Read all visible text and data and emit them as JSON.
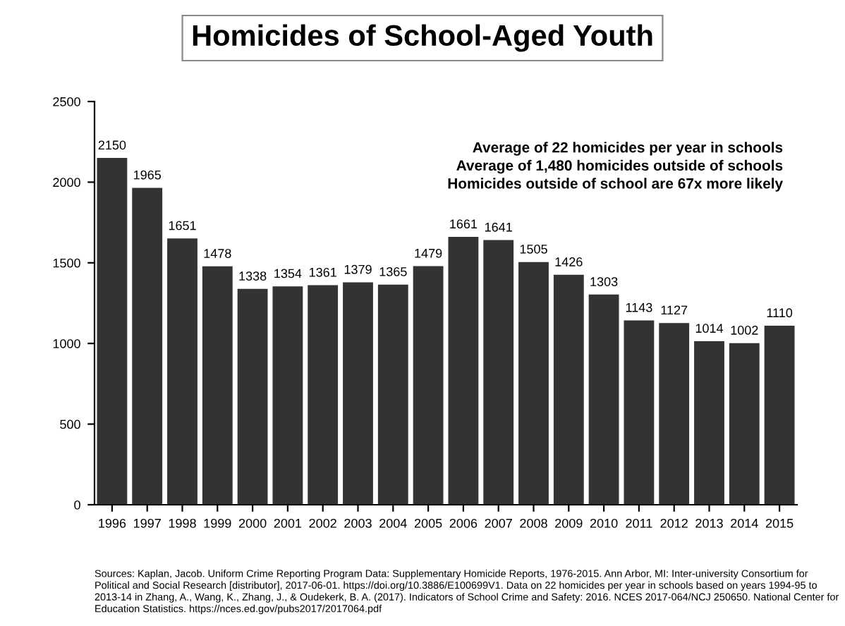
{
  "chart_data": {
    "type": "bar",
    "title": "Homicides of School-Aged Youth",
    "categories": [
      "1996",
      "1997",
      "1998",
      "1999",
      "2000",
      "2001",
      "2002",
      "2003",
      "2004",
      "2005",
      "2006",
      "2007",
      "2008",
      "2009",
      "2010",
      "2011",
      "2012",
      "2013",
      "2014",
      "2015"
    ],
    "values": [
      2150,
      1965,
      1651,
      1478,
      1338,
      1354,
      1361,
      1379,
      1365,
      1479,
      1661,
      1641,
      1505,
      1426,
      1303,
      1143,
      1127,
      1014,
      1002,
      1110
    ],
    "color": "#333333",
    "ylim": [
      0,
      2500
    ],
    "yticks": [
      0,
      500,
      1000,
      1500,
      2000,
      2500
    ],
    "grid": false,
    "data_labels": true,
    "annotations": [
      "Average of 22 homicides per year in schools\nAverage of 1,480 homicides outside of schools\nHomicides outside of school are 67x more likely",
      "Sources: Kaplan, Jacob. Uniform Crime Reporting Program Data: Supplementary Homicide Reports, 1976-2015. Ann Arbor, MI: Inter-university Consortium for Political and Social Research [distributor], 2017-06-01. https://doi.org/10.3886/E100699V1. Data on 22 homicides per year in schools based on years 1994-95 to 2013-14 in Zhang, A., Wang, K., Zhang, J., & Oudekerk, B. A. (2017). Indicators of School Crime and Safety: 2016. NCES 2017-064/NCJ 250650. National Center for Education Statistics. https://nces.ed.gov/pubs2017/2017064.pdf"
    ]
  }
}
